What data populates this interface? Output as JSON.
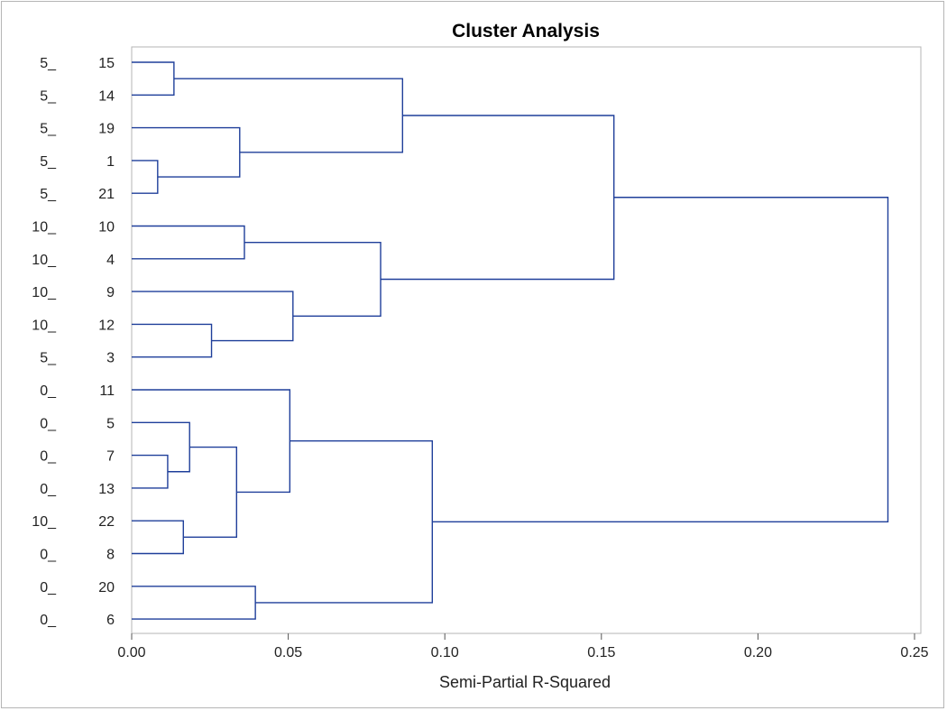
{
  "chart_data": {
    "type": "dendrogram",
    "title": "Cluster Analysis",
    "xlabel": "Semi-Partial R-Squared",
    "xlim": [
      0,
      0.25
    ],
    "xticks": [
      "0.00",
      "0.05",
      "0.10",
      "0.15",
      "0.20",
      "0.25"
    ],
    "leaves": [
      {
        "id": "15",
        "group": "5_"
      },
      {
        "id": "14",
        "group": "5_"
      },
      {
        "id": "19",
        "group": "5_"
      },
      {
        "id": "1",
        "group": "5_"
      },
      {
        "id": "21",
        "group": "5_"
      },
      {
        "id": "10",
        "group": "10_"
      },
      {
        "id": "4",
        "group": "10_"
      },
      {
        "id": "9",
        "group": "10_"
      },
      {
        "id": "12",
        "group": "10_"
      },
      {
        "id": "3",
        "group": "5_"
      },
      {
        "id": "11",
        "group": "0_"
      },
      {
        "id": "5",
        "group": "0_"
      },
      {
        "id": "7",
        "group": "0_"
      },
      {
        "id": "13",
        "group": "0_"
      },
      {
        "id": "22",
        "group": "10_"
      },
      {
        "id": "8",
        "group": "0_"
      },
      {
        "id": "20",
        "group": "0_"
      },
      {
        "id": "6",
        "group": "0_"
      }
    ],
    "merges": [
      {
        "a": "15",
        "b": "14",
        "height": 0.0135
      },
      {
        "a": "1",
        "b": "21",
        "height": 0.0083
      },
      {
        "a": "19",
        "b": "M2",
        "height": 0.0345
      },
      {
        "a": "M1",
        "b": "M3",
        "height": 0.0865
      },
      {
        "a": "10",
        "b": "4",
        "height": 0.036
      },
      {
        "a": "12",
        "b": "3",
        "height": 0.0255
      },
      {
        "a": "9",
        "b": "M6",
        "height": 0.0515
      },
      {
        "a": "M5",
        "b": "M7",
        "height": 0.0795
      },
      {
        "a": "M4",
        "b": "M8",
        "height": 0.154
      },
      {
        "a": "7",
        "b": "13",
        "height": 0.0115
      },
      {
        "a": "5",
        "b": "M10",
        "height": 0.0185
      },
      {
        "a": "22",
        "b": "8",
        "height": 0.0165
      },
      {
        "a": "M11",
        "b": "M12",
        "height": 0.0335
      },
      {
        "a": "11",
        "b": "M13",
        "height": 0.0505
      },
      {
        "a": "20",
        "b": "6",
        "height": 0.0395
      },
      {
        "a": "M14",
        "b": "M15",
        "height": 0.096
      },
      {
        "a": "M9",
        "b": "M16",
        "height": 0.2415
      }
    ],
    "colors": {
      "line": "#1f3f9a",
      "axis": "#b5b5b5",
      "text": "#222222"
    }
  }
}
